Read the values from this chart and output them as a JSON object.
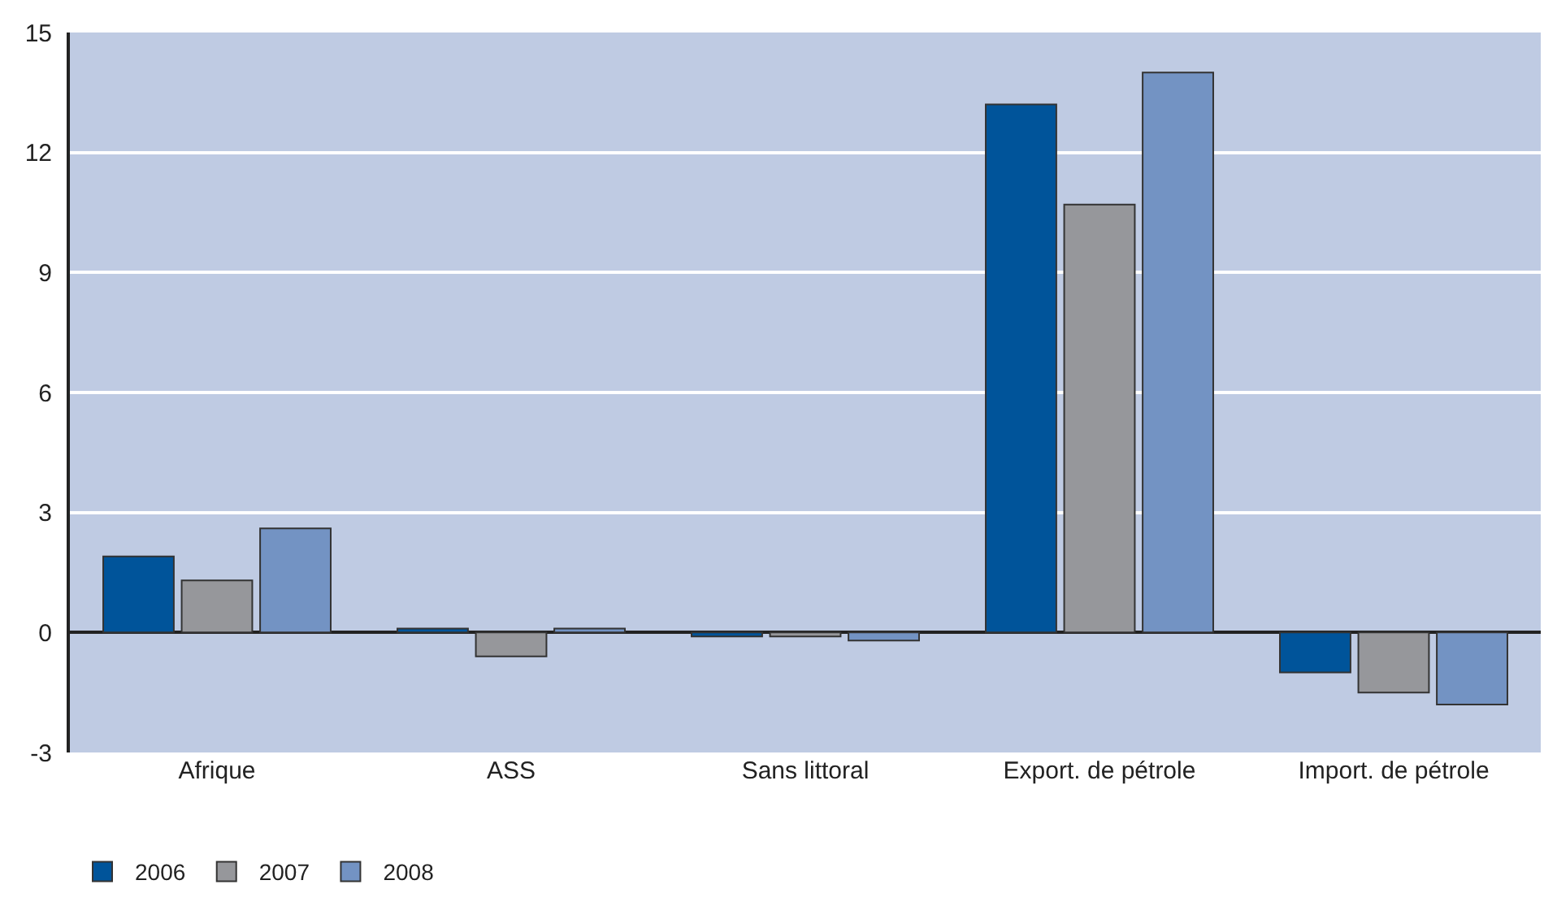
{
  "chart_data": {
    "type": "bar",
    "categories": [
      "Afrique",
      "ASS",
      "Sans littoral",
      "Export. de pétrole",
      "Import. de pétrole"
    ],
    "series": [
      {
        "name": "2006",
        "color": "#00549a",
        "values": [
          1.9,
          0.1,
          -0.1,
          13.2,
          -1.0
        ]
      },
      {
        "name": "2007",
        "color": "#96979b",
        "values": [
          1.3,
          -0.6,
          -0.1,
          10.7,
          -1.5
        ]
      },
      {
        "name": "2008",
        "color": "#7393c3",
        "values": [
          2.6,
          0.1,
          -0.2,
          14.0,
          -1.8
        ]
      }
    ],
    "ylim": [
      -3,
      15
    ],
    "yticks": [
      -3,
      0,
      3,
      6,
      9,
      12,
      15
    ],
    "grid": "y",
    "legend": "bottom left"
  }
}
